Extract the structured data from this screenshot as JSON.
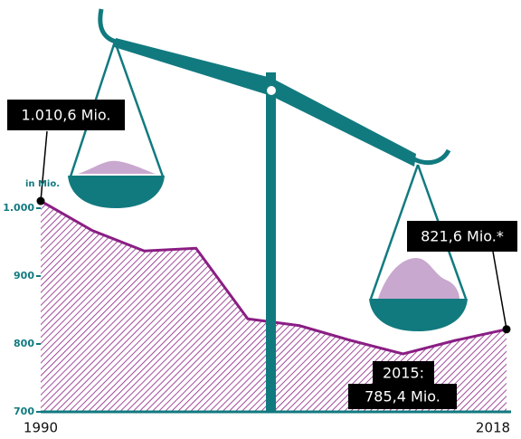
{
  "chart_data": {
    "type": "area",
    "y_unit_label": "in Mio.",
    "categories": [
      "1990",
      null,
      null,
      null,
      null,
      null,
      null,
      null,
      null,
      "2018"
    ],
    "values": [
      1010.6,
      967,
      937,
      941,
      837,
      827,
      805,
      785.4,
      805,
      821.6
    ],
    "value_labels": [
      "1.010,6 Mio.",
      null,
      null,
      null,
      null,
      null,
      null,
      "785,4 Mio.",
      null,
      "821,6 Mio.*"
    ],
    "annotations": [
      "2015:"
    ],
    "color": "#8a1e84",
    "axis_color": "#117a7f",
    "ylim": [
      700,
      1100
    ],
    "yticks": [
      700,
      800,
      900,
      {
        "value": 1000,
        "label": "1.000"
      }
    ]
  }
}
